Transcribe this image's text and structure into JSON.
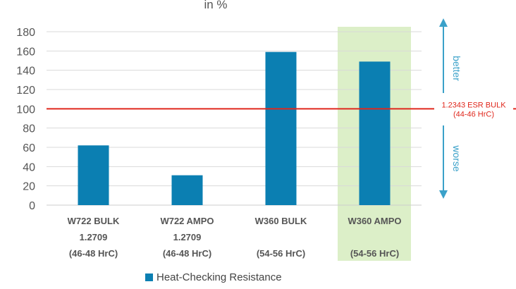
{
  "chart_data": {
    "type": "bar",
    "title": "in %",
    "categories": [
      [
        "W722 BULK",
        "1.2709",
        "(46-48 HrC)"
      ],
      [
        "W722 AMPO",
        "1.2709",
        "(46-48 HrC)"
      ],
      [
        "W360 BULK",
        "",
        "(54-56 HrC)"
      ],
      [
        "W360 AMPO",
        "",
        "(54-56 HrC)"
      ]
    ],
    "series": [
      {
        "name": "Heat-Checking Resistance",
        "values": [
          62,
          31,
          159,
          149
        ]
      }
    ],
    "ylim": [
      0,
      180
    ],
    "yticks": [
      0,
      20,
      40,
      60,
      80,
      100,
      120,
      140,
      160,
      180
    ],
    "grid": true,
    "highlight_category": 3,
    "reference_line": {
      "value": 100,
      "label": [
        "1.2343 ESR BULK",
        "(44-46 HrC)"
      ]
    },
    "annotations": {
      "above": "better",
      "below": "worse"
    },
    "legend_position": "bottom",
    "colors": {
      "bar": "#0b7fb2",
      "highlight": "#dcefc8",
      "reference": "#e0281d",
      "arrow": "#3aa1c9",
      "grid": "#d9d9d9"
    }
  }
}
